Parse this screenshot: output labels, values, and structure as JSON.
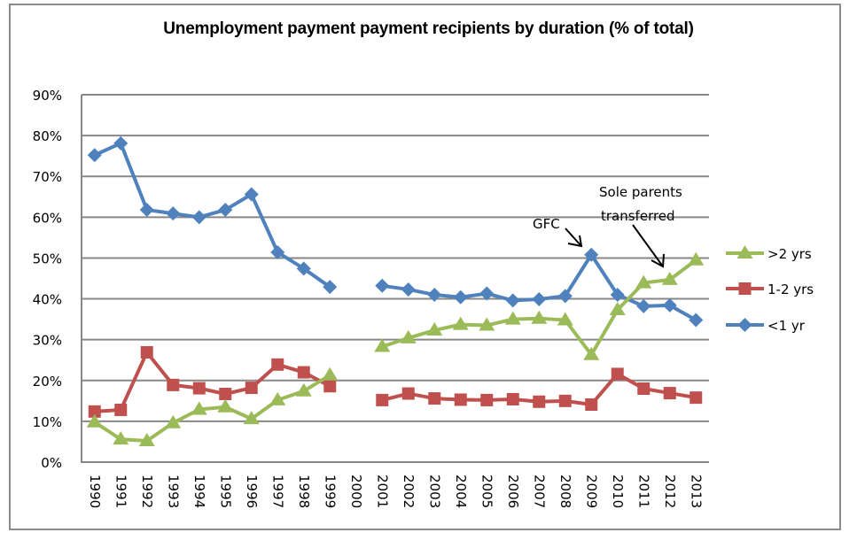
{
  "chart_data": {
    "type": "line",
    "title": "Unemployment payment payment recipients by duration  (% of total)",
    "xlabel": "",
    "ylabel": "",
    "ylim": [
      0,
      90
    ],
    "yticks": [
      "0%",
      "10%",
      "20%",
      "30%",
      "40%",
      "50%",
      "60%",
      "70%",
      "80%",
      "90%"
    ],
    "grid": true,
    "legend_position": "right",
    "categories": [
      "1990",
      "1991",
      "1992",
      "1993",
      "1994",
      "1995",
      "1996",
      "1997",
      "1998",
      "1999",
      "2000",
      "2001",
      "2002",
      "2003",
      "2004",
      "2005",
      "2006",
      "2007",
      "2008",
      "2009",
      "2010",
      "2011",
      "2012",
      "2013"
    ],
    "series": [
      {
        "name": ">2 yrs",
        "color": "#9bbb59",
        "marker": "triangle",
        "values": [
          9.8,
          5.6,
          5.2,
          9.6,
          12.9,
          13.5,
          10.6,
          15.2,
          17.4,
          21.3,
          null,
          28.3,
          30.4,
          32.3,
          33.7,
          33.5,
          35.0,
          35.2,
          34.8,
          26.3,
          37.3,
          43.9,
          44.7,
          49.5
        ]
      },
      {
        "name": "1-2 yrs",
        "color": "#c0504d",
        "marker": "square",
        "values": [
          12.4,
          12.8,
          26.9,
          18.9,
          18.1,
          16.7,
          18.2,
          23.9,
          22.0,
          18.6,
          null,
          15.2,
          16.8,
          15.6,
          15.3,
          15.2,
          15.4,
          14.8,
          15.0,
          14.1,
          21.6,
          18.0,
          16.9,
          15.8
        ]
      },
      {
        "name": "<1 yr",
        "color": "#4f81bd",
        "marker": "diamond",
        "values": [
          75.2,
          78.1,
          61.8,
          60.9,
          60.0,
          61.8,
          65.6,
          51.4,
          47.4,
          42.9,
          null,
          43.2,
          42.3,
          41.0,
          40.4,
          41.3,
          39.6,
          39.9,
          40.7,
          50.8,
          41.0,
          38.2,
          38.4,
          34.8
        ]
      }
    ],
    "annotations": [
      {
        "text": "GFC",
        "points_to": "2009"
      },
      {
        "lines": [
          "Sole parents",
          "transferred"
        ],
        "points_to": "2012"
      }
    ]
  }
}
